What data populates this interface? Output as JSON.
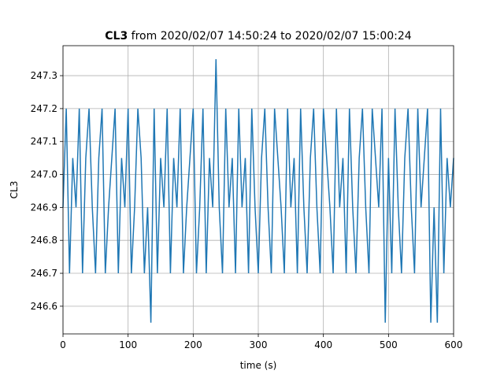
{
  "chart_data": {
    "type": "line",
    "title": [
      "CL3",
      "from 2020/02/07 14:50:24 to 2020/02/07 15:00:24"
    ],
    "x_label": "time (s)",
    "y_label": "CL3",
    "xlim": [
      0,
      600
    ],
    "xticks": [
      0,
      100,
      200,
      300,
      400,
      500,
      600
    ],
    "ylim": [
      246.516,
      247.391
    ],
    "yticks": [
      246.6,
      246.7,
      246.8,
      246.9,
      {
        "value": 247,
        "label": "247.0"
      },
      247.1,
      247.2,
      247.3
    ],
    "grid": true,
    "series": [
      {
        "color": "#1f77b4",
        "x": [
          0,
          5,
          10,
          15,
          20,
          25,
          30,
          35,
          40,
          45,
          50,
          55,
          60,
          65,
          70,
          75,
          80,
          85,
          90,
          95,
          100,
          105,
          110,
          115,
          120,
          125,
          130,
          135,
          140,
          145,
          150,
          155,
          160,
          165,
          170,
          175,
          180,
          185,
          190,
          195,
          200,
          205,
          210,
          215,
          220,
          225,
          230,
          235,
          240,
          245,
          250,
          255,
          260,
          265,
          270,
          275,
          280,
          285,
          290,
          295,
          300,
          305,
          310,
          315,
          320,
          325,
          330,
          335,
          340,
          345,
          350,
          355,
          360,
          365,
          370,
          375,
          380,
          385,
          390,
          395,
          400,
          405,
          410,
          415,
          420,
          425,
          430,
          435,
          440,
          445,
          450,
          455,
          460,
          465,
          470,
          475,
          480,
          485,
          490,
          495,
          500,
          505,
          510,
          515,
          520,
          525,
          530,
          535,
          540,
          545,
          550,
          555,
          560,
          565,
          570,
          575,
          580,
          585,
          590,
          595,
          600
        ],
        "values": [
          246.9,
          247.2,
          246.7,
          247.05,
          246.9,
          247.2,
          246.7,
          247.05,
          247.2,
          246.9,
          246.7,
          247.05,
          247.2,
          246.7,
          246.9,
          247.05,
          247.2,
          246.7,
          247.05,
          246.9,
          247.2,
          246.7,
          246.9,
          247.2,
          247.05,
          246.7,
          246.9,
          246.55,
          247.2,
          246.7,
          247.05,
          246.9,
          247.2,
          246.7,
          247.05,
          246.9,
          247.2,
          246.7,
          246.9,
          247.05,
          247.2,
          246.7,
          246.9,
          247.2,
          246.7,
          247.05,
          246.9,
          247.35,
          246.9,
          246.7,
          247.2,
          246.9,
          247.05,
          246.7,
          247.2,
          246.9,
          247.05,
          246.7,
          247.2,
          246.9,
          246.7,
          247.05,
          247.2,
          246.9,
          246.7,
          247.2,
          247.05,
          246.9,
          246.7,
          247.2,
          246.9,
          247.05,
          246.7,
          247.2,
          246.9,
          246.7,
          247.05,
          247.2,
          246.9,
          246.7,
          247.2,
          247.05,
          246.9,
          246.7,
          247.2,
          246.9,
          247.05,
          246.7,
          247.2,
          246.9,
          246.7,
          247.05,
          247.2,
          246.9,
          246.7,
          247.2,
          247.05,
          246.9,
          247.2,
          246.55,
          247.05,
          246.7,
          247.2,
          246.9,
          246.7,
          247.05,
          247.2,
          246.9,
          246.7,
          247.2,
          246.9,
          247.05,
          247.2,
          246.55,
          246.9,
          246.55,
          247.2,
          246.7,
          247.05,
          246.9,
          247.05
        ]
      }
    ]
  }
}
